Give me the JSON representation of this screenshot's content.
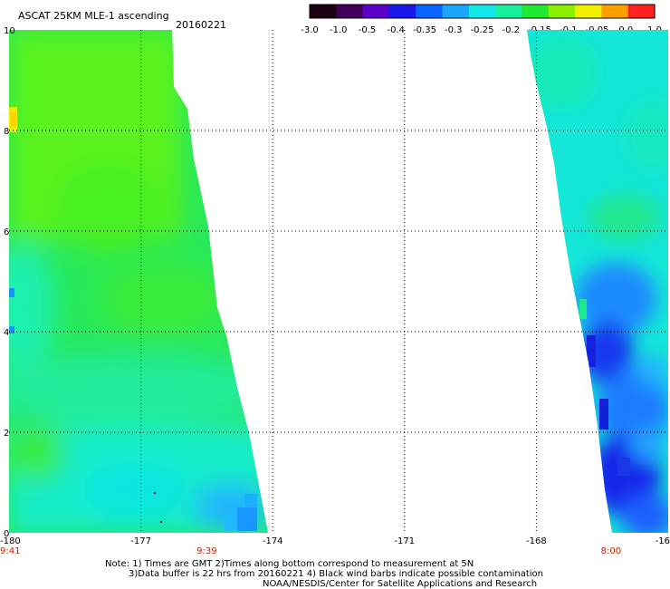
{
  "header": {
    "title": "ASCAT 25KM MLE-1 ascending",
    "date": "20160221"
  },
  "colorbar": {
    "labels": [
      "-3.0",
      "-1.0",
      "-0.5",
      "-0.4",
      "-0.35",
      "-0.3",
      "-0.25",
      "-0.2",
      "-0.15",
      "-0.1",
      "-0.05",
      "0.0",
      "1.0"
    ],
    "colors": [
      "#1a0010",
      "#40005a",
      "#5a00c8",
      "#1818e8",
      "#0a64ff",
      "#1aa6ff",
      "#12e8e8",
      "#18f0a0",
      "#20e830",
      "#8af000",
      "#f0f000",
      "#ffa000",
      "#ff2020"
    ]
  },
  "chart_data": {
    "type": "heatmap",
    "x_ticks": [
      "-180",
      "-177",
      "-174",
      "-171",
      "-168",
      "-16"
    ],
    "y_ticks": [
      "0",
      "2",
      "4",
      "6",
      "8",
      "10"
    ],
    "time_labels": [
      "9:41",
      "9:39",
      "8:00"
    ],
    "xlim": [
      -180,
      -165
    ],
    "ylim": [
      0,
      10
    ],
    "grid": true
  },
  "footer": {
    "note_line1": "Note: 1) Times are GMT 2)Times along bottom correspond to measurement at 5N",
    "note_line2": "3)Data buffer is 22 hrs from 20160221 4) Black wind barbs indicate possible contamination",
    "credit": "NOAA/NESDIS/Center for Satellite Applications and Research"
  }
}
